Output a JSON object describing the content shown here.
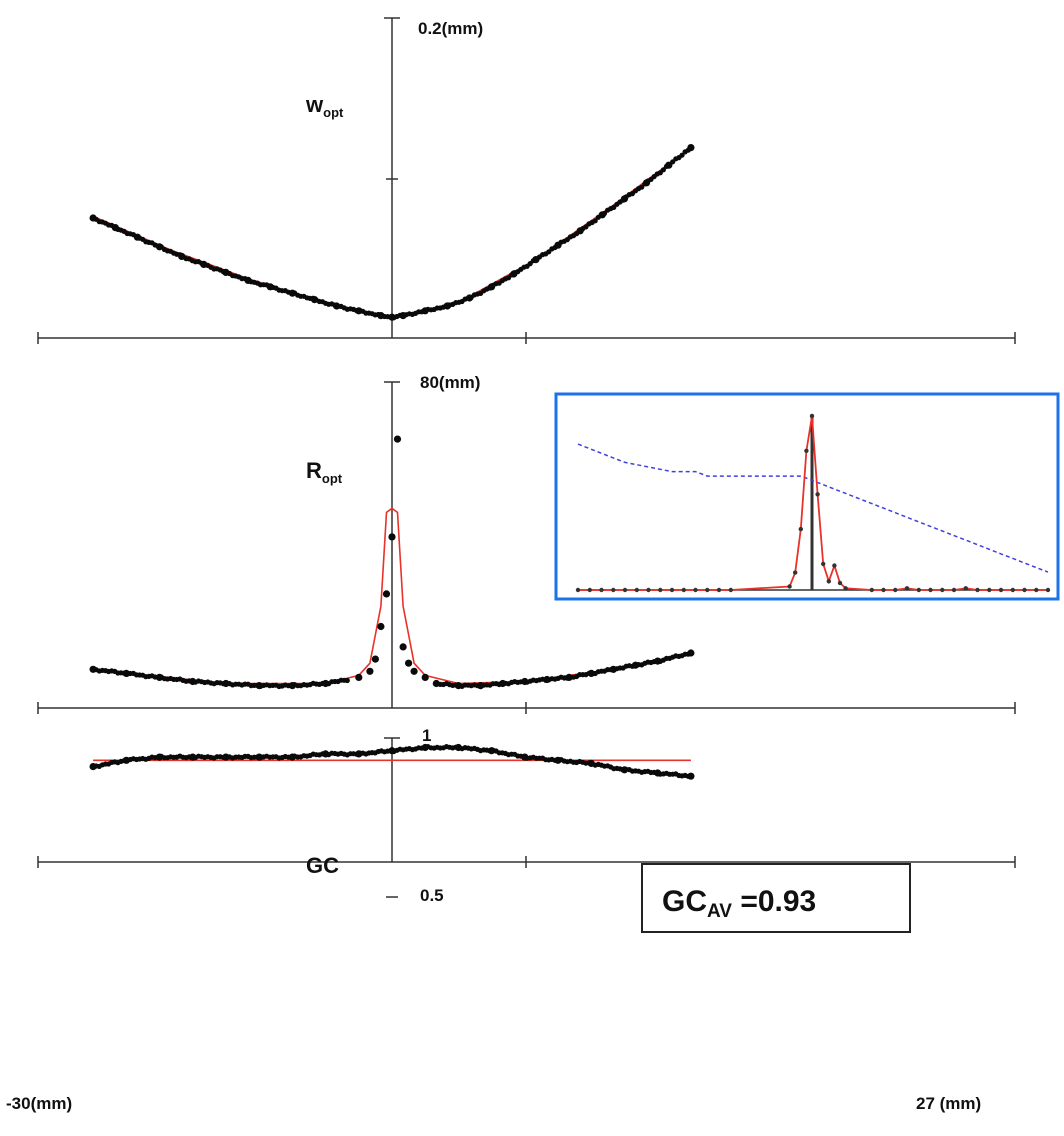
{
  "chart_data": [
    {
      "type": "scatter",
      "panel": "w_opt",
      "ylabel": "w",
      "ylabel_sub": "opt",
      "ytick_top_label": "0.2(mm)",
      "xlim": [
        -30,
        27
      ],
      "ylim": [
        0,
        0.2
      ],
      "series": [
        {
          "kind": "measured",
          "color": "#000000",
          "x": [
            -27,
            -25,
            -23,
            -21,
            -19,
            -17,
            -15,
            -13,
            -11,
            -9,
            -7,
            -5,
            -3,
            -1,
            0,
            1,
            3,
            5,
            7,
            9,
            11,
            13,
            15,
            17,
            19,
            21,
            23,
            25,
            27
          ],
          "y": [
            0.075,
            0.069,
            0.063,
            0.057,
            0.051,
            0.046,
            0.041,
            0.036,
            0.032,
            0.028,
            0.024,
            0.02,
            0.017,
            0.014,
            0.013,
            0.014,
            0.017,
            0.02,
            0.025,
            0.032,
            0.04,
            0.049,
            0.058,
            0.067,
            0.077,
            0.087,
            0.097,
            0.108,
            0.119
          ]
        },
        {
          "kind": "fit",
          "color": "#e8322a",
          "x": [
            -27,
            -20,
            -13,
            -6,
            0,
            6,
            13,
            20,
            27
          ],
          "y": [
            0.076,
            0.055,
            0.037,
            0.022,
            0.013,
            0.022,
            0.049,
            0.083,
            0.119
          ]
        }
      ]
    },
    {
      "type": "scatter",
      "panel": "R_opt",
      "ylabel": "R",
      "ylabel_sub": "opt",
      "ytick_top_label": "80(mm)",
      "xlim": [
        -30,
        27
      ],
      "ylim": [
        0,
        80
      ],
      "series": [
        {
          "kind": "measured",
          "color": "#000000",
          "x": [
            -27,
            -24,
            -21,
            -18,
            -15,
            -12,
            -9,
            -6,
            -3,
            -2,
            -1.5,
            -1,
            -0.5,
            0,
            0.5,
            1,
            1.5,
            2,
            3,
            4,
            6,
            8,
            10,
            12,
            14,
            16,
            18,
            20,
            22,
            24,
            27
          ],
          "y": [
            9.5,
            8.5,
            7.5,
            6.5,
            6,
            5.5,
            5.5,
            6,
            7.5,
            9,
            12,
            20,
            28,
            42,
            66,
            15,
            11,
            9,
            7.5,
            6,
            5.5,
            5.5,
            6,
            6.5,
            7,
            7.5,
            8.5,
            9.5,
            10.5,
            11.5,
            13.5
          ]
        },
        {
          "kind": "fit",
          "color": "#e8322a",
          "x": [
            -27,
            -15,
            -6,
            -3,
            -2,
            -1,
            -0.5,
            0,
            0.5,
            1,
            2,
            3,
            6,
            12,
            20,
            27
          ],
          "y": [
            9.5,
            6,
            6,
            8,
            11,
            25,
            48,
            49,
            48,
            25,
            11,
            8,
            6,
            6.5,
            9.5,
            13.5
          ]
        }
      ]
    },
    {
      "type": "scatter",
      "panel": "GC",
      "ylabel": "GC",
      "ytick_top_label": "1",
      "ytick_mid_label": "0.5",
      "ylim": [
        0,
        1
      ],
      "xlim": [
        -30,
        27
      ],
      "x_left_label": "-30(mm)",
      "x_right_label": "27 (mm)",
      "annotation": {
        "main": "GC",
        "sub": "AV",
        "rest": " =0.93"
      },
      "series": [
        {
          "kind": "measured",
          "color": "#000000",
          "x": [
            -27,
            -24,
            -21,
            -18,
            -15,
            -12,
            -9,
            -6,
            -3,
            0,
            3,
            6,
            9,
            12,
            15,
            18,
            21,
            24,
            27
          ],
          "y": [
            0.91,
            0.93,
            0.94,
            0.94,
            0.94,
            0.94,
            0.94,
            0.95,
            0.95,
            0.96,
            0.97,
            0.97,
            0.96,
            0.94,
            0.93,
            0.92,
            0.9,
            0.89,
            0.88
          ]
        },
        {
          "kind": "fit",
          "color": "#e8322a",
          "x": [
            -27,
            27
          ],
          "y": [
            0.93,
            0.93
          ]
        }
      ]
    }
  ],
  "inset": {
    "border_color": "#1a73e8",
    "peak_color": "#e8322a",
    "dashed_color": "#4040e0",
    "peak_profile": [
      0,
      0,
      0,
      0,
      0,
      0,
      0,
      0,
      0,
      0,
      0,
      0,
      0,
      0,
      0.02,
      0.1,
      0.35,
      0.8,
      1,
      0.55,
      0.15,
      0.05,
      0.14,
      0.04,
      0.01,
      0,
      0,
      0,
      0.01,
      0,
      0,
      0,
      0,
      0.01,
      0,
      0,
      0,
      0,
      0,
      0,
      0
    ],
    "dashed_profile": [
      0.93,
      0.92,
      0.91,
      0.9,
      0.89,
      0.885,
      0.88,
      0.875,
      0.87,
      0.87,
      0.87,
      0.86,
      0.86,
      0.86,
      0.86,
      0.86,
      0.86,
      0.86,
      0.86,
      0.86,
      0.85,
      0.84,
      0.83,
      0.82,
      0.81,
      0.8,
      0.79,
      0.78,
      0.77,
      0.76,
      0.75,
      0.74,
      0.73,
      0.72,
      0.71,
      0.7,
      0.69,
      0.68,
      0.67,
      0.66,
      0.65
    ]
  }
}
